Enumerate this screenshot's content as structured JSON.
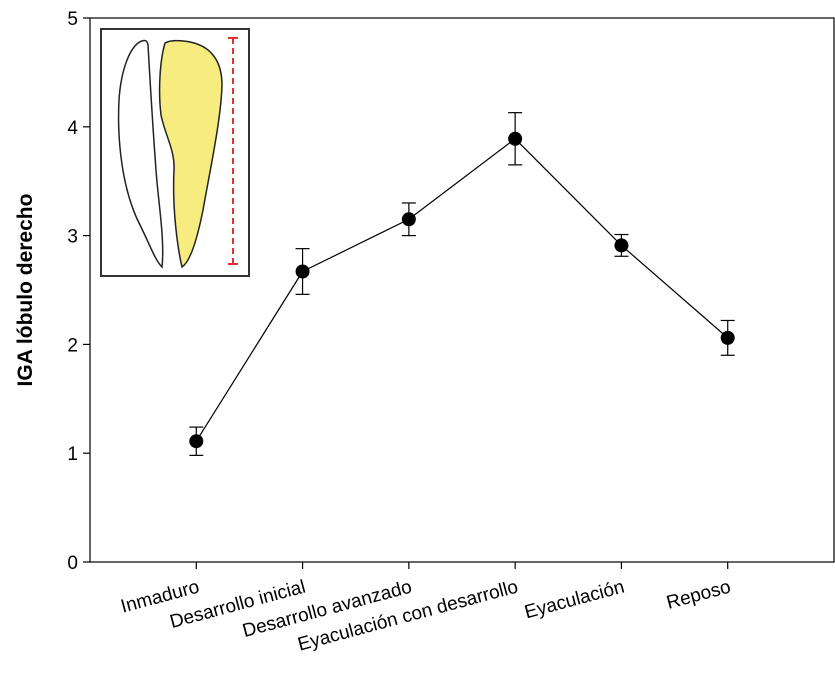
{
  "chart_data": {
    "type": "line",
    "y_label": "IGA lóbulo derecho",
    "categories": [
      "Inmaduro",
      "Desarrollo inicial",
      "Desarrollo avanzado",
      "Eyaculación con desarrollo",
      "Eyaculación",
      "Reposo"
    ],
    "values": [
      1.11,
      2.67,
      3.15,
      3.89,
      2.91,
      2.06
    ],
    "errors": [
      0.13,
      0.21,
      0.15,
      0.24,
      0.1,
      0.16
    ],
    "color": "#000000",
    "ylim": [
      0,
      5
    ],
    "yticks": [
      0,
      1,
      2,
      3,
      4,
      5
    ]
  }
}
